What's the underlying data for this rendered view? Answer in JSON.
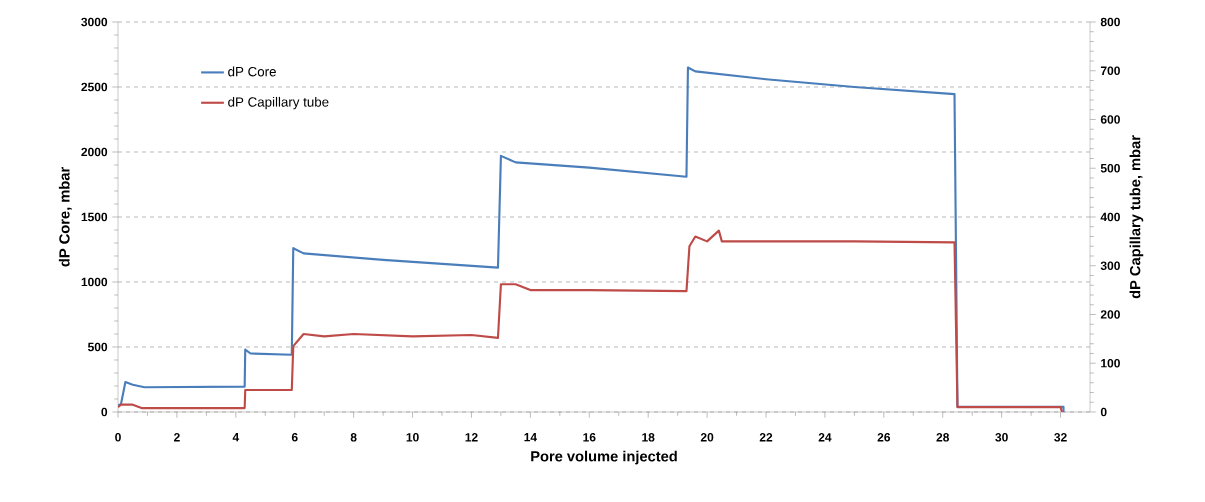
{
  "chart_data": {
    "type": "line",
    "xlabel": "Pore volume injected",
    "ylabel": "dP Core, mbar",
    "y2label": "dP Capillary tube, mbar",
    "xlim": [
      0,
      33
    ],
    "xticks": [
      0,
      2,
      4,
      6,
      8,
      10,
      12,
      14,
      16,
      18,
      20,
      22,
      24,
      26,
      28,
      30,
      32
    ],
    "ylim": [
      0,
      3000
    ],
    "yticks": [
      0,
      500,
      1000,
      1500,
      2000,
      2500,
      3000
    ],
    "y2lim": [
      0,
      800
    ],
    "y2ticks": [
      0,
      100,
      200,
      300,
      400,
      500,
      600,
      700,
      800
    ],
    "grid": "y",
    "legend": "top left",
    "marker": "none",
    "line_style": "solid",
    "series": [
      {
        "name": "dP Core",
        "color": "#4a7ebb",
        "x": [
          0,
          0.1,
          0.25,
          0.5,
          0.9,
          4.3,
          4.32,
          4.5,
          5.9,
          5.95,
          6.3,
          9,
          12.9,
          13.0,
          13.5,
          16,
          19.3,
          19.35,
          19.6,
          22,
          25,
          28.4,
          28.5,
          32.1,
          32.1
        ],
        "values": [
          50,
          60,
          230,
          210,
          190,
          195,
          480,
          450,
          440,
          1260,
          1220,
          1170,
          1110,
          1970,
          1920,
          1880,
          1810,
          2650,
          2620,
          2560,
          2500,
          2445,
          40,
          40,
          0
        ]
      },
      {
        "name": "dP Capillary tube",
        "color": "#be4b48",
        "axis": "y2",
        "x": [
          0,
          0.1,
          0.5,
          0.8,
          4.3,
          4.32,
          5.9,
          5.95,
          6.3,
          7,
          8,
          10,
          12,
          12.9,
          13.0,
          13.5,
          14,
          16,
          19.3,
          19.4,
          19.6,
          20,
          20.4,
          20.5,
          22,
          25,
          28.4,
          28.5,
          32,
          32.05
        ],
        "values": [
          10,
          15,
          15,
          8,
          8,
          45,
          45,
          135,
          160,
          155,
          160,
          155,
          158,
          152,
          262,
          262,
          250,
          250,
          248,
          340,
          360,
          350,
          372,
          350,
          350,
          350,
          348,
          10,
          10,
          0
        ]
      }
    ]
  }
}
